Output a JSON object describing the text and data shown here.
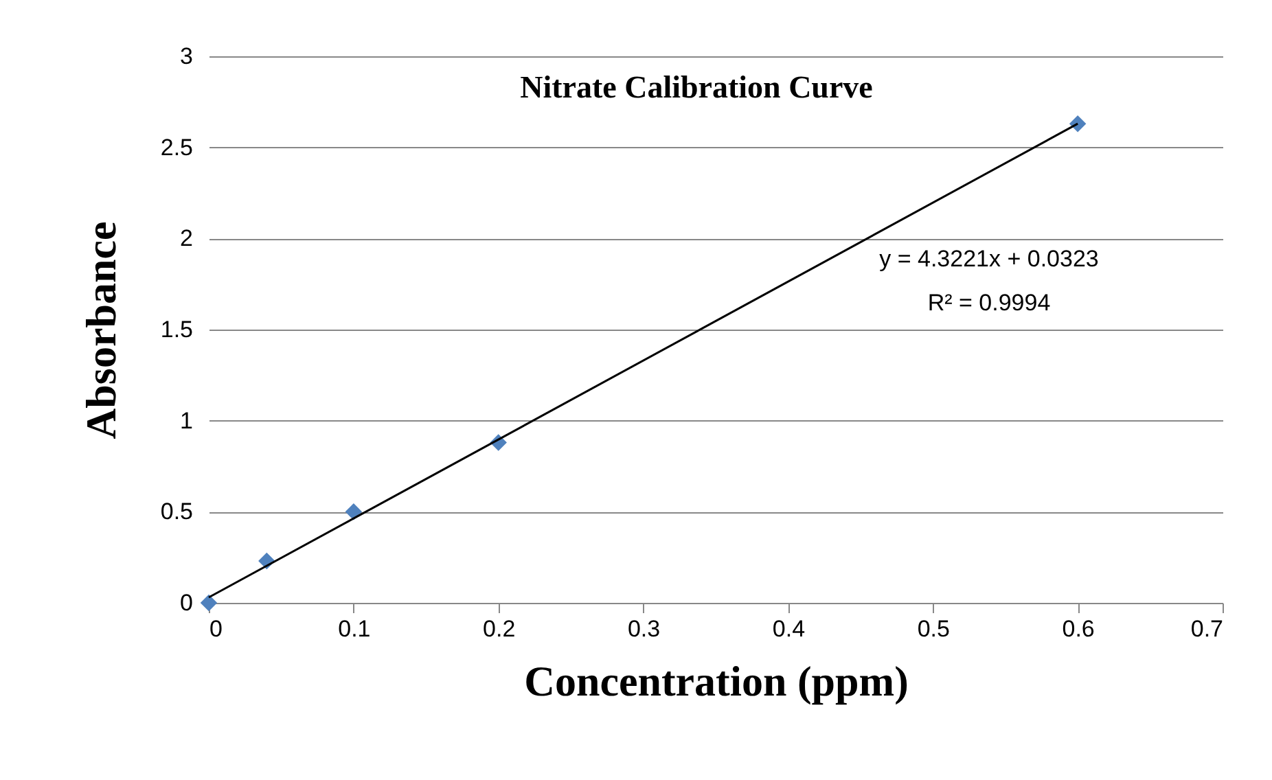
{
  "chart_data": {
    "type": "scatter",
    "title": "Nitrate Calibration Curve",
    "xlabel": "Concentration (ppm)",
    "ylabel": "Absorbance",
    "series": [
      {
        "color": "#4f81bd",
        "x": [
          0,
          0.04,
          0.1,
          0.2,
          0.6
        ],
        "values": [
          0,
          0.23,
          0.5,
          0.88,
          2.63
        ]
      },
      {
        "type": "line",
        "marker": "none",
        "color": "#000000",
        "x": [
          0,
          0.6
        ],
        "values": [
          0.03,
          2.63
        ]
      }
    ],
    "marker": "diamond",
    "grid": "y",
    "xlim": [
      0,
      0.7
    ],
    "xticks": [
      0,
      0.1,
      0.2,
      0.3,
      0.4,
      0.5,
      0.6,
      0.7
    ],
    "ylim": [
      0,
      3
    ],
    "yticks": [
      0,
      0.5,
      1,
      1.5,
      2,
      2.5,
      3
    ],
    "annotations": [
      "y = 4.3221x + 0.0323",
      "R² = 0.9994"
    ]
  }
}
